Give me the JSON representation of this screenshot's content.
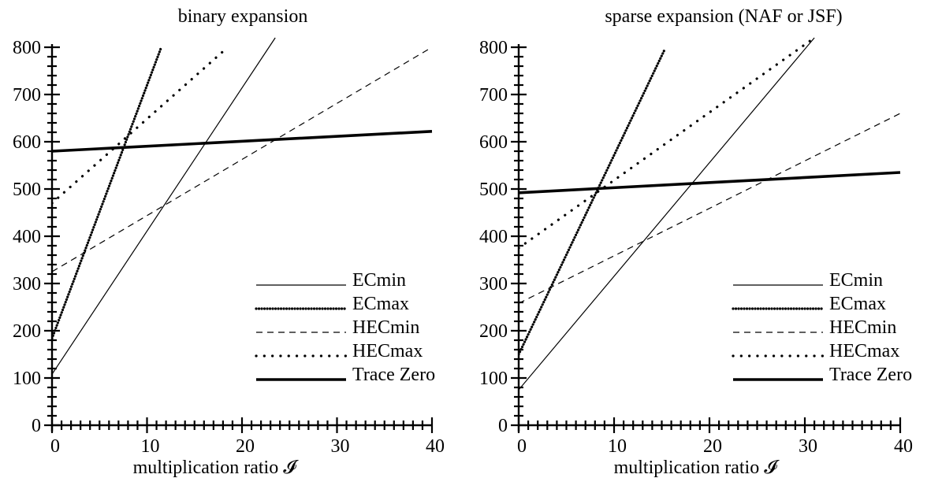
{
  "chart_data": [
    {
      "type": "line",
      "title": "binary expansion",
      "xlabel": "multiplication ratio 𝓘",
      "ylabel": "",
      "xlim": [
        0,
        40
      ],
      "ylim": [
        0,
        800
      ],
      "xticks": [
        "0",
        "10",
        "20",
        "30",
        "40"
      ],
      "yticks": [
        "0",
        "100",
        "200",
        "300",
        "400",
        "500",
        "600",
        "700",
        "800"
      ],
      "grid": false,
      "legend_position": "right",
      "series": [
        {
          "name": "ECmin",
          "style": "solid-thin",
          "x": [
            0,
            23.5
          ],
          "y": [
            108,
            820
          ]
        },
        {
          "name": "ECmax",
          "style": "dense-dots",
          "x": [
            0,
            11.5
          ],
          "y": [
            184,
            800
          ]
        },
        {
          "name": "HECmin",
          "style": "dashed",
          "x": [
            0,
            40
          ],
          "y": [
            325,
            800
          ]
        },
        {
          "name": "HECmax",
          "style": "sparse-dots",
          "x": [
            0,
            18.5
          ],
          "y": [
            470,
            800
          ]
        },
        {
          "name": "Trace Zero",
          "style": "solid-thick",
          "x": [
            0,
            40
          ],
          "y": [
            580,
            622
          ]
        }
      ]
    },
    {
      "type": "line",
      "title": "sparse expansion (NAF or JSF)",
      "xlabel": "multiplication ratio 𝓘",
      "ylabel": "",
      "xlim": [
        0,
        40
      ],
      "ylim": [
        0,
        800
      ],
      "xticks": [
        "0",
        "10",
        "20",
        "30",
        "40"
      ],
      "yticks": [
        "0",
        "100",
        "200",
        "300",
        "400",
        "500",
        "600",
        "700",
        "800"
      ],
      "grid": false,
      "legend_position": "right",
      "series": [
        {
          "name": "ECmin",
          "style": "solid-thin",
          "x": [
            0,
            31
          ],
          "y": [
            75,
            820
          ]
        },
        {
          "name": "ECmax",
          "style": "dense-dots",
          "x": [
            0,
            15.3
          ],
          "y": [
            150,
            795
          ]
        },
        {
          "name": "HECmin",
          "style": "dashed",
          "x": [
            0,
            40
          ],
          "y": [
            258,
            660
          ]
        },
        {
          "name": "HECmax",
          "style": "sparse-dots",
          "x": [
            0,
            31
          ],
          "y": [
            375,
            820
          ]
        },
        {
          "name": "Trace Zero",
          "style": "solid-thick",
          "x": [
            0,
            40
          ],
          "y": [
            492,
            535
          ]
        }
      ]
    }
  ]
}
